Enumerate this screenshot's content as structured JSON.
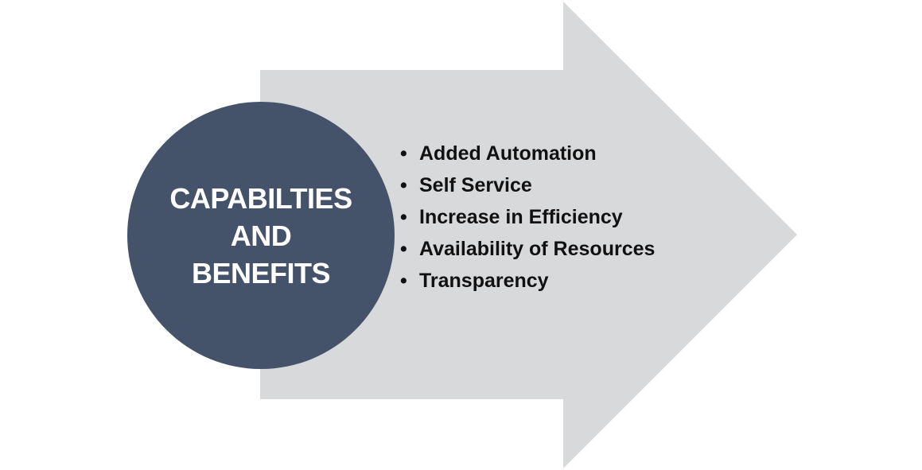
{
  "diagram": {
    "title_lines": [
      "CAPABILTIES",
      "AND",
      "BENEFITS"
    ],
    "items": [
      "Added Automation",
      "Self Service",
      "Increase in Efficiency",
      "Availability of Resources",
      "Transparency"
    ],
    "colors": {
      "arrow_fill": "#d8d9db",
      "circle_fill": "#44536a",
      "title_text": "#ffffff",
      "item_text": "#111111"
    }
  }
}
